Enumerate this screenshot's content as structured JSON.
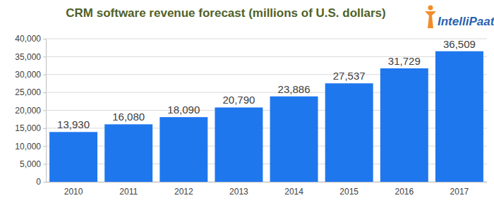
{
  "chart_data": {
    "type": "bar",
    "title": "CRM software revenue forecast (millions of U.S. dollars)",
    "annotations": [
      "IntelliPaat"
    ],
    "categories": [
      "2010",
      "2011",
      "2012",
      "2013",
      "2014",
      "2015",
      "2016",
      "2017"
    ],
    "values": [
      13930,
      16080,
      18090,
      20790,
      23886,
      27537,
      31729,
      36509
    ],
    "value_labels": [
      "13,930",
      "16,080",
      "18,090",
      "20,790",
      "23,886",
      "27,537",
      "31,729",
      "36,509"
    ],
    "color": "#1f77ee",
    "ylim": [
      0,
      40000
    ],
    "yticks": [
      0,
      {
        "value": 5000,
        "label": "5,000"
      },
      {
        "value": 10000,
        "label": "10,000"
      },
      {
        "value": 15000,
        "label": "15,000"
      },
      {
        "value": 20000,
        "label": "20,000"
      },
      {
        "value": 25000,
        "label": "25,000"
      },
      {
        "value": 30000,
        "label": "30,000"
      },
      {
        "value": 35000,
        "label": "35,000"
      },
      {
        "value": 40000,
        "label": "40,000"
      }
    ],
    "grid": true,
    "data_labels": true
  }
}
